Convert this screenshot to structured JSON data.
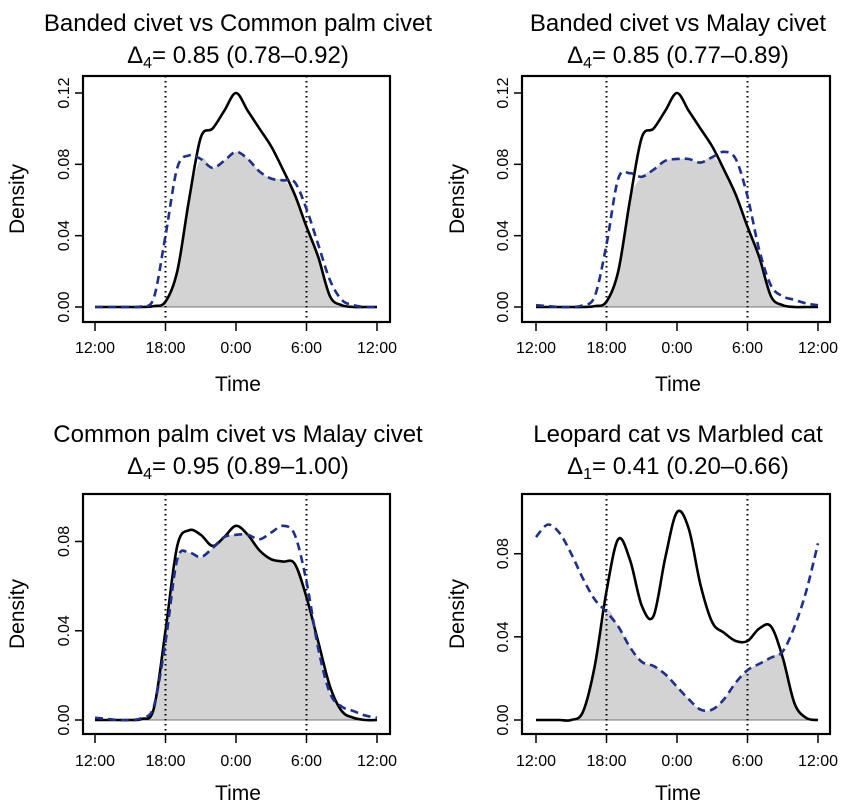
{
  "figure": {
    "xlabel": "Time",
    "ylabel": "Density",
    "colors": {
      "series_a": "#000000",
      "series_b": "#1f2f8c",
      "overlap_fill": "#d3d3d3"
    }
  },
  "chart_data": [
    {
      "type": "line",
      "title": "Banded civet vs Common palm civet",
      "subtitle": {
        "prefix": "Δ",
        "sub": "4",
        "rest": "= 0.85 (0.78–0.92)"
      },
      "xlabel": "Time",
      "ylabel": "Density",
      "x_ticks": [
        "12:00",
        "18:00",
        "0:00",
        "6:00",
        "12:00"
      ],
      "y_ticks": [
        "0.00",
        "0.04",
        "0.08",
        "0.12"
      ],
      "xlim": [
        0,
        24
      ],
      "ylim": [
        0,
        0.12
      ],
      "grid": false,
      "reference_lines_x": [
        6,
        18
      ],
      "x": [
        0,
        1,
        2,
        3,
        4,
        5,
        6,
        7,
        8,
        9,
        10,
        11,
        12,
        13,
        14,
        15,
        16,
        17,
        18,
        19,
        20,
        21,
        22,
        23,
        24
      ],
      "series": [
        {
          "style": "solid",
          "values": [
            0,
            0,
            0,
            0,
            0,
            0.0005,
            0.003,
            0.02,
            0.06,
            0.095,
            0.1,
            0.11,
            0.12,
            0.11,
            0.1,
            0.09,
            0.077,
            0.063,
            0.045,
            0.028,
            0.006,
            0.001,
            0,
            0,
            0
          ]
        },
        {
          "style": "dashed",
          "values": [
            0,
            0,
            0,
            0,
            0.0005,
            0.005,
            0.04,
            0.078,
            0.085,
            0.083,
            0.078,
            0.082,
            0.087,
            0.083,
            0.076,
            0.072,
            0.071,
            0.07,
            0.055,
            0.035,
            0.015,
            0.004,
            0.001,
            0,
            0
          ]
        }
      ]
    },
    {
      "type": "line",
      "title": "Banded civet vs Malay civet",
      "subtitle": {
        "prefix": "Δ",
        "sub": "4",
        "rest": "= 0.85 (0.77–0.89)"
      },
      "xlabel": "Time",
      "ylabel": "Density",
      "x_ticks": [
        "12:00",
        "18:00",
        "0:00",
        "6:00",
        "12:00"
      ],
      "y_ticks": [
        "0.00",
        "0.04",
        "0.08",
        "0.12"
      ],
      "xlim": [
        0,
        24
      ],
      "ylim": [
        0,
        0.12
      ],
      "grid": false,
      "reference_lines_x": [
        6,
        18
      ],
      "x": [
        0,
        1,
        2,
        3,
        4,
        5,
        6,
        7,
        8,
        9,
        10,
        11,
        12,
        13,
        14,
        15,
        16,
        17,
        18,
        19,
        20,
        21,
        22,
        23,
        24
      ],
      "series": [
        {
          "style": "solid",
          "values": [
            0,
            0,
            0,
            0,
            0,
            0.0005,
            0.003,
            0.02,
            0.06,
            0.095,
            0.1,
            0.11,
            0.12,
            0.11,
            0.1,
            0.09,
            0.077,
            0.063,
            0.045,
            0.028,
            0.006,
            0.001,
            0,
            0,
            0
          ]
        },
        {
          "style": "dashed",
          "values": [
            0.001,
            0.0005,
            0,
            0,
            0.001,
            0.006,
            0.035,
            0.072,
            0.075,
            0.073,
            0.077,
            0.082,
            0.083,
            0.083,
            0.081,
            0.084,
            0.087,
            0.083,
            0.062,
            0.032,
            0.012,
            0.006,
            0.004,
            0.002,
            0.001
          ]
        }
      ]
    },
    {
      "type": "line",
      "title": "Common palm civet vs Malay civet",
      "subtitle": {
        "prefix": "Δ",
        "sub": "4",
        "rest": "= 0.95 (0.89–1.00)"
      },
      "xlabel": "Time",
      "ylabel": "Density",
      "x_ticks": [
        "12:00",
        "18:00",
        "0:00",
        "6:00",
        "12:00"
      ],
      "y_ticks": [
        "0.00",
        "0.04",
        "0.08"
      ],
      "xlim": [
        0,
        24
      ],
      "ylim": [
        0,
        0.095
      ],
      "grid": false,
      "reference_lines_x": [
        6,
        18
      ],
      "x": [
        0,
        1,
        2,
        3,
        4,
        5,
        6,
        7,
        8,
        9,
        10,
        11,
        12,
        13,
        14,
        15,
        16,
        17,
        18,
        19,
        20,
        21,
        22,
        23,
        24
      ],
      "series": [
        {
          "style": "solid",
          "values": [
            0,
            0,
            0,
            0,
            0.0005,
            0.005,
            0.04,
            0.078,
            0.085,
            0.083,
            0.078,
            0.082,
            0.087,
            0.083,
            0.076,
            0.072,
            0.071,
            0.07,
            0.055,
            0.035,
            0.015,
            0.004,
            0.001,
            0,
            0
          ]
        },
        {
          "style": "dashed",
          "values": [
            0.001,
            0.0005,
            0,
            0,
            0.001,
            0.006,
            0.035,
            0.072,
            0.075,
            0.073,
            0.077,
            0.082,
            0.083,
            0.083,
            0.081,
            0.084,
            0.087,
            0.083,
            0.062,
            0.032,
            0.012,
            0.006,
            0.004,
            0.002,
            0.001
          ]
        }
      ]
    },
    {
      "type": "line",
      "title": "Leopard cat vs Marbled cat",
      "subtitle": {
        "prefix": "Δ",
        "sub": "1",
        "rest": "= 0.41 (0.20–0.66)"
      },
      "xlabel": "Time",
      "ylabel": "Density",
      "x_ticks": [
        "12:00",
        "18:00",
        "0:00",
        "6:00",
        "12:00"
      ],
      "y_ticks": [
        "0.00",
        "0.04",
        "0.08"
      ],
      "xlim": [
        0,
        24
      ],
      "ylim": [
        0,
        0.102
      ],
      "grid": false,
      "reference_lines_x": [
        6,
        18
      ],
      "x": [
        0,
        1,
        2,
        3,
        4,
        5,
        6,
        7,
        8,
        9,
        10,
        11,
        12,
        13,
        14,
        15,
        16,
        17,
        18,
        19,
        20,
        21,
        22,
        23,
        24
      ],
      "series": [
        {
          "style": "solid",
          "values": [
            0,
            0,
            0,
            0,
            0.004,
            0.026,
            0.062,
            0.087,
            0.077,
            0.055,
            0.05,
            0.078,
            0.1,
            0.092,
            0.065,
            0.047,
            0.042,
            0.038,
            0.038,
            0.044,
            0.045,
            0.03,
            0.008,
            0.001,
            0
          ]
        },
        {
          "style": "dashed",
          "values": [
            0.088,
            0.094,
            0.09,
            0.08,
            0.068,
            0.058,
            0.052,
            0.045,
            0.035,
            0.028,
            0.026,
            0.022,
            0.016,
            0.01,
            0.005,
            0.005,
            0.01,
            0.018,
            0.024,
            0.027,
            0.03,
            0.033,
            0.045,
            0.062,
            0.085
          ]
        }
      ]
    }
  ]
}
